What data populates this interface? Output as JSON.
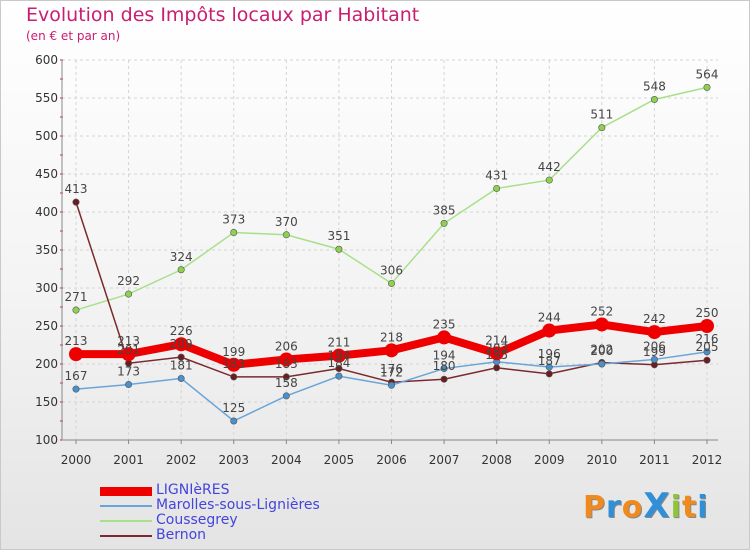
{
  "title": "Evolution des Impôts locaux par Habitant",
  "subtitle": "(en € et par an)",
  "logo": "ProXiti",
  "chart_data": {
    "type": "line",
    "title": "Evolution des Impôts locaux par Habitant",
    "subtitle": "(en € et par an)",
    "xlabel": "",
    "ylabel": "",
    "ylim": [
      100,
      600
    ],
    "yticks": [
      100,
      150,
      200,
      250,
      300,
      350,
      400,
      450,
      500,
      550,
      600
    ],
    "grid": true,
    "legend_position": "bottom-left",
    "categories": [
      "2000",
      "2001",
      "2002",
      "2003",
      "2004",
      "2005",
      "2006",
      "2007",
      "2008",
      "2009",
      "2010",
      "2011",
      "2012"
    ],
    "series": [
      {
        "name": "Coussegrey",
        "color": "#8fd14f",
        "line_color": "#a8e08a",
        "thick": false,
        "values": [
          271,
          292,
          324,
          373,
          370,
          351,
          306,
          385,
          431,
          442,
          511,
          548,
          564
        ]
      },
      {
        "name": "Bernon",
        "color": "#6b1e22",
        "line_color": "#7a2a2e",
        "thick": false,
        "values": [
          413,
          201,
          209,
          183,
          183,
          194,
          176,
          180,
          195,
          187,
          202,
          199,
          205
        ]
      },
      {
        "name": "Marolles-sous-Lignières",
        "color": "#4a90cc",
        "line_color": "#6aa5d8",
        "thick": false,
        "values": [
          167,
          173,
          181,
          125,
          158,
          184,
          172,
          194,
          203,
          196,
          200,
          206,
          216
        ]
      },
      {
        "name": "LIGNIèRES",
        "color": "#ee0000",
        "line_color": "#ee0000",
        "thick": true,
        "values": [
          213,
          213,
          226,
          199,
          206,
          211,
          218,
          235,
          214,
          244,
          252,
          242,
          250
        ]
      }
    ],
    "legend_order": [
      "LIGNIèRES",
      "Marolles-sous-Lignières",
      "Coussegrey",
      "Bernon"
    ]
  }
}
